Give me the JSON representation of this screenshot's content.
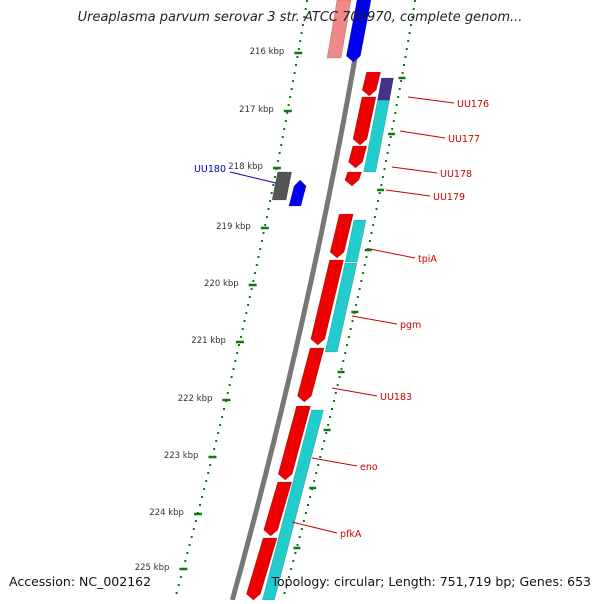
{
  "title": "Ureaplasma parvum serovar 3 str. ATCC 700970, complete genom...",
  "footer": {
    "accession": "Accession: NC_002162",
    "summary": "Topology: circular; Length: 751,719 bp; Genes: 653"
  },
  "colors": {
    "forward_gene": "#ee0000",
    "cds": "#22cccc",
    "reverse_gene": "#0000ee",
    "reverse_other": "#555555",
    "tick": "#117711",
    "label": "#cc0000",
    "reverse_label": "#0000cc",
    "backbone": "#777777"
  },
  "ticks": [
    "216 kbp",
    "217 kbp",
    "218 kbp",
    "219 kbp",
    "220 kbp",
    "221 kbp",
    "222 kbp",
    "223 kbp",
    "224 kbp",
    "225 kbp"
  ],
  "gene_labels": [
    {
      "name": "UU176",
      "strand": "forward"
    },
    {
      "name": "UU177",
      "strand": "forward"
    },
    {
      "name": "UU178",
      "strand": "forward"
    },
    {
      "name": "UU179",
      "strand": "forward"
    },
    {
      "name": "tpiA",
      "strand": "forward"
    },
    {
      "name": "pgm",
      "strand": "forward"
    },
    {
      "name": "UU183",
      "strand": "forward"
    },
    {
      "name": "eno",
      "strand": "forward"
    },
    {
      "name": "pfkA",
      "strand": "forward"
    },
    {
      "name": "UU180",
      "strand": "reverse"
    }
  ]
}
